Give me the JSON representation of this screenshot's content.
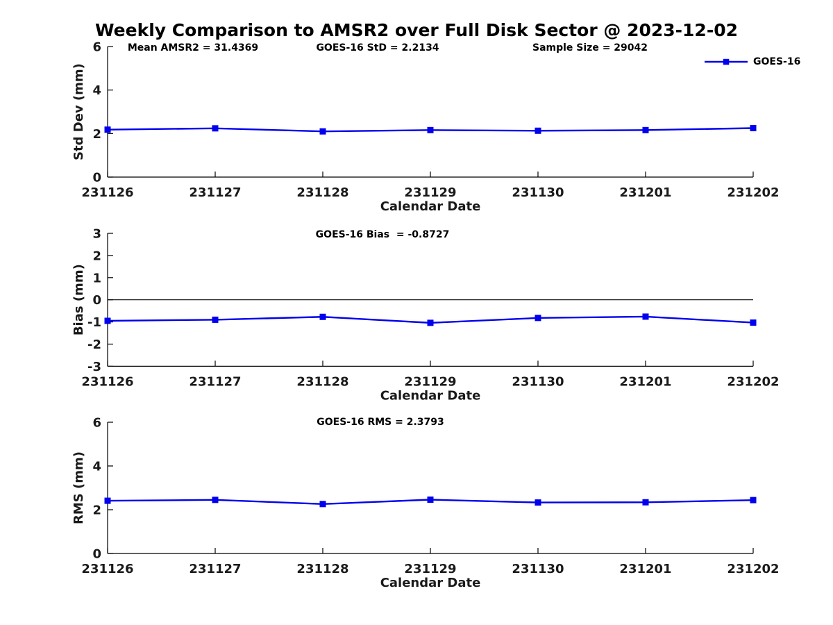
{
  "title": "Weekly Comparison to AMSR2 over Full Disk Sector @ 2023-12-02",
  "chart_data": [
    {
      "type": "line",
      "name": "std-dev-subplot",
      "categories": [
        "231126",
        "231127",
        "231128",
        "231129",
        "231130",
        "231201",
        "231202"
      ],
      "series": [
        {
          "name": "GOES-16",
          "values": [
            2.18,
            2.24,
            2.1,
            2.16,
            2.13,
            2.16,
            2.25
          ]
        }
      ],
      "annotations": [
        "Mean AMSR2 = 31.4369",
        "GOES-16 StD = 2.2134",
        "Sample Size = 29042"
      ],
      "xlabel": "Calendar Date",
      "ylabel": "Std Dev (mm)",
      "ylim": [
        0,
        6
      ],
      "yticks": [
        0,
        2,
        4,
        6
      ],
      "grid": false,
      "zero_line": false,
      "legend_position": "top-right-outside",
      "line_color": "#0000EE",
      "marker": "square"
    },
    {
      "type": "line",
      "name": "bias-subplot",
      "categories": [
        "231126",
        "231127",
        "231128",
        "231129",
        "231130",
        "231201",
        "231202"
      ],
      "series": [
        {
          "name": "GOES-16",
          "values": [
            -0.95,
            -0.9,
            -0.77,
            -1.04,
            -0.82,
            -0.76,
            -1.03
          ]
        }
      ],
      "annotations": [
        "GOES-16 Bias  = -0.8727"
      ],
      "xlabel": "Calendar Date",
      "ylabel": "Bias (mm)",
      "ylim": [
        -3,
        3
      ],
      "yticks": [
        -3,
        -2,
        -1,
        0,
        1,
        2,
        3
      ],
      "grid": false,
      "zero_line": true,
      "line_color": "#0000EE",
      "marker": "square"
    },
    {
      "type": "line",
      "name": "rms-subplot",
      "categories": [
        "231126",
        "231127",
        "231128",
        "231129",
        "231130",
        "231201",
        "231202"
      ],
      "series": [
        {
          "name": "GOES-16",
          "values": [
            2.41,
            2.45,
            2.26,
            2.46,
            2.33,
            2.34,
            2.44
          ]
        }
      ],
      "annotations": [
        "GOES-16 RMS = 2.3793"
      ],
      "xlabel": "Calendar Date",
      "ylabel": "RMS (mm)",
      "ylim": [
        0,
        6
      ],
      "yticks": [
        0,
        2,
        4,
        6
      ],
      "grid": false,
      "zero_line": false,
      "line_color": "#0000EE",
      "marker": "square"
    }
  ]
}
